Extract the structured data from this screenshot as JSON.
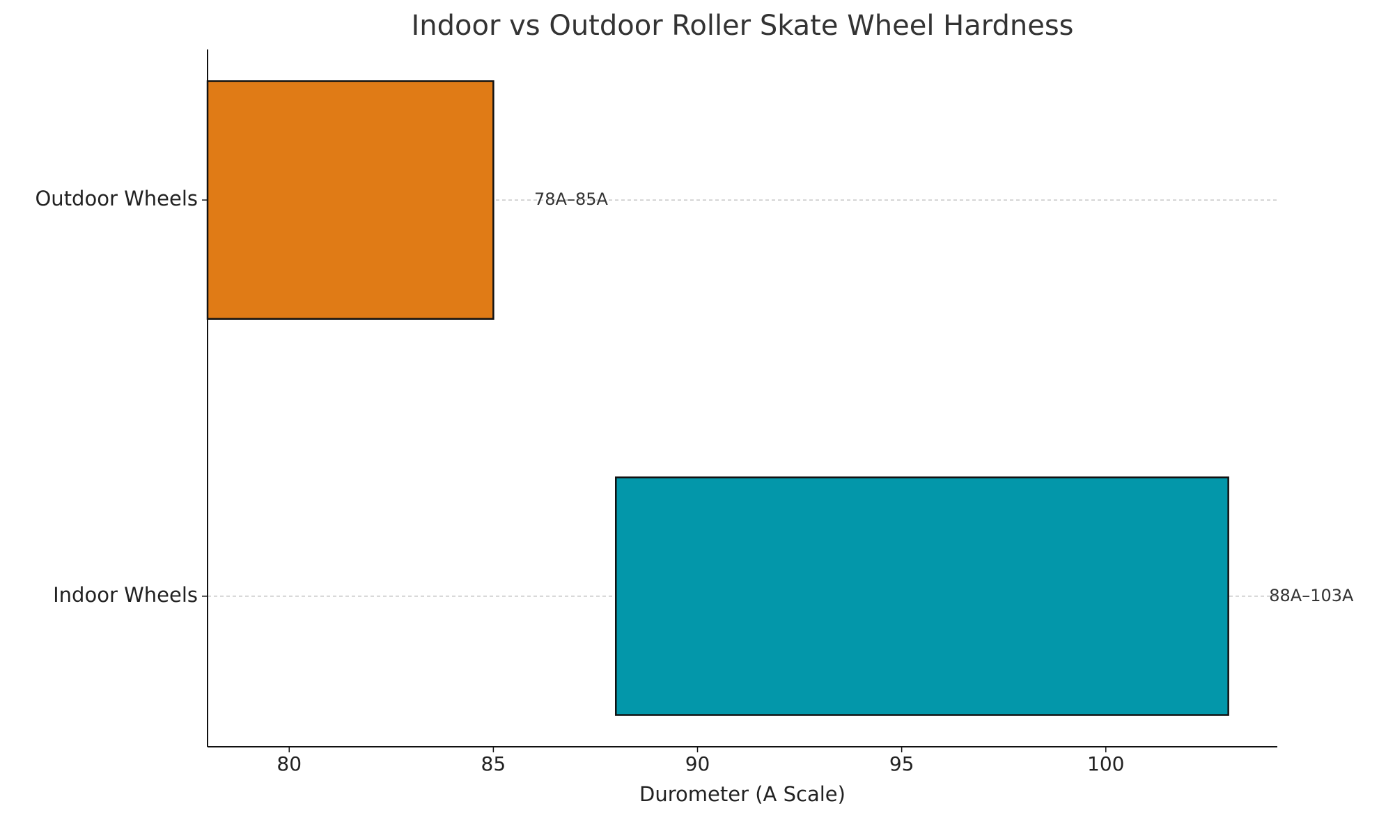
{
  "chart_data": {
    "type": "range-bar",
    "orientation": "horizontal",
    "title": "Indoor vs Outdoor Roller Skate Wheel Hardness",
    "x_label": "Durometer (A Scale)",
    "categories": [
      "Outdoor Wheels",
      "Indoor Wheels"
    ],
    "starts": [
      78,
      88
    ],
    "ends": [
      85,
      103
    ],
    "value_labels": [
      "78A–85A",
      "88A–103A"
    ],
    "colors": [
      "#e07b16",
      "#0397aa"
    ],
    "xlim": [
      78,
      104.2
    ],
    "xticks": [
      80,
      85,
      90,
      95,
      100
    ],
    "grid": true
  }
}
